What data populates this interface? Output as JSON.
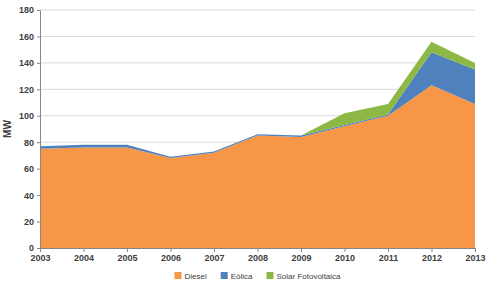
{
  "chart_data": {
    "type": "area",
    "stacked": true,
    "grid": true,
    "legend": "bottom",
    "y_label": "MW",
    "x": [
      2003,
      2004,
      2005,
      2006,
      2007,
      2008,
      2009,
      2010,
      2011,
      2012,
      2013
    ],
    "xlim": [
      2003,
      2013
    ],
    "xticks": [
      2003,
      2004,
      2005,
      2006,
      2007,
      2008,
      2009,
      2010,
      2011,
      2012,
      2013
    ],
    "ylim": [
      0,
      180
    ],
    "yticks": [
      0,
      20,
      40,
      60,
      80,
      100,
      120,
      140,
      160,
      180
    ],
    "series": [
      {
        "name": "Diesel",
        "color": "#f79646",
        "values": [
          75,
          76,
          76,
          68,
          72,
          85,
          84,
          92,
          100,
          123,
          109
        ]
      },
      {
        "name": "Eólica",
        "color": "#4f81bd",
        "values": [
          2,
          2,
          2,
          1,
          1,
          1,
          1,
          1,
          1,
          25,
          26
        ]
      },
      {
        "name": "Solar Fotovoltaica",
        "color": "#8db846",
        "values": [
          0,
          0,
          0,
          0,
          0,
          0,
          0,
          9,
          8,
          8,
          5
        ]
      }
    ]
  }
}
